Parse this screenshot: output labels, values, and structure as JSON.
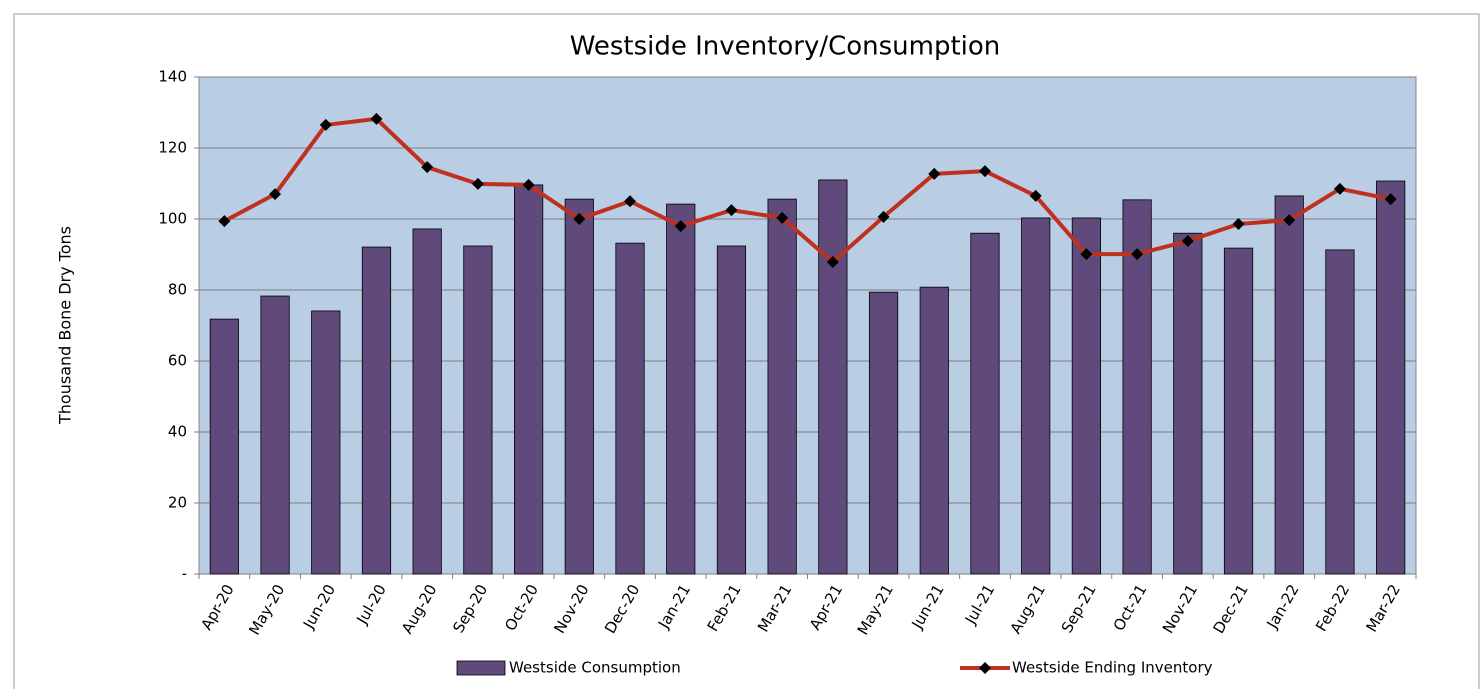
{
  "chart_data": {
    "type": "bar_line",
    "title": "Westside Inventory/Consumption",
    "y_label": "Thousand Bone Dry Tons",
    "categories": [
      "Apr-20",
      "May-20",
      "Jun-20",
      "Jul-20",
      "Aug-20",
      "Sep-20",
      "Oct-20",
      "Nov-20",
      "Dec-20",
      "Jan-21",
      "Feb-21",
      "Mar-21",
      "Apr-21",
      "May-21",
      "Jun-21",
      "Jul-21",
      "Aug-21",
      "Sep-21",
      "Oct-21",
      "Nov-21",
      "Dec-21",
      "Jan-22",
      "Feb-22",
      "Mar-22"
    ],
    "series": [
      {
        "name": "Westside Consumption",
        "type": "bar",
        "color": "#604a7b",
        "values": [
          71.8,
          78.3,
          74.1,
          92.1,
          97.2,
          92.4,
          109.6,
          105.6,
          93.2,
          104.2,
          92.4,
          105.6,
          111,
          79.4,
          80.8,
          96,
          100.3,
          100.3,
          105.4,
          96,
          91.8,
          106.5,
          91.3,
          110.7
        ]
      },
      {
        "name": "Westside Ending Inventory",
        "type": "line",
        "color": "#c0301f",
        "marker_color": "#000000",
        "values": [
          99.4,
          107,
          126.5,
          128.2,
          114.6,
          109.9,
          109.6,
          100,
          105,
          98,
          102.5,
          100.3,
          87.9,
          100.6,
          112.7,
          113.5,
          106.5,
          90.1,
          90.1,
          93.8,
          98.6,
          99.7,
          108.5,
          105.6
        ]
      }
    ],
    "ylim": [
      0,
      140
    ],
    "yticks": [
      {
        "value": 0,
        "label": "-"
      },
      20,
      40,
      60,
      80,
      100,
      120,
      140
    ],
    "grid": true,
    "legend": "bottom",
    "plot_background": "#b9cde4"
  }
}
